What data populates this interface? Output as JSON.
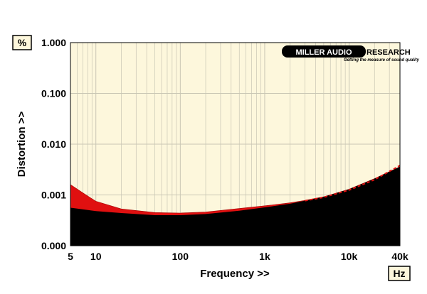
{
  "units": {
    "y": "%",
    "x": "Hz"
  },
  "logo": {
    "left": "MILLER AUDIO",
    "right": "RESEARCH",
    "tagline": "Getting the measure of sound quality"
  },
  "colors": {
    "background": "#fdf7dc",
    "grid": "#c9c6b4",
    "fill_black": "#000000",
    "fill_red": "#e01010",
    "dashed": "#e01010"
  },
  "chart_data": {
    "type": "area",
    "title": "",
    "xlabel": "Frequency >>",
    "ylabel": "Distortion >>",
    "x_scale": "log",
    "y_scale": "log",
    "xlim": [
      5,
      40000
    ],
    "ylim": [
      0.0001,
      1.0
    ],
    "y_zero_label": "0.000",
    "x_ticks": [
      5,
      10,
      100,
      1000,
      10000,
      40000
    ],
    "x_tick_labels": [
      "5",
      "10",
      "100",
      "1k",
      "10k",
      "40k"
    ],
    "y_ticks": [
      0.0001,
      0.001,
      0.01,
      0.1,
      1.0
    ],
    "y_tick_labels": [
      "0.000",
      "0.001",
      "0.010",
      "0.100",
      "1.000"
    ],
    "grid": true,
    "series": [
      {
        "style": "black-fill",
        "x": [
          5,
          7,
          10,
          20,
          50,
          100,
          200,
          500,
          1000,
          2000,
          3000,
          5000,
          10000,
          20000,
          40000
        ],
        "y": [
          0.00056,
          0.00052,
          0.00048,
          0.00044,
          0.0004,
          0.0004,
          0.00042,
          0.00049,
          0.00057,
          0.00067,
          0.00077,
          0.00092,
          0.0013,
          0.0021,
          0.0036
        ]
      },
      {
        "style": "red-fill",
        "x": [
          5,
          7,
          10,
          20,
          50,
          100,
          200,
          500,
          1000,
          2000,
          3000,
          5000,
          10000,
          20000,
          40000
        ],
        "y": [
          0.0016,
          0.0011,
          0.00075,
          0.00053,
          0.00045,
          0.00044,
          0.00046,
          0.00054,
          0.00061,
          0.0007,
          0.00078,
          0.00092,
          0.0013,
          0.0021,
          0.0036
        ]
      },
      {
        "style": "red-dashed",
        "x": [
          3000,
          5000,
          10000,
          20000,
          40000
        ],
        "y": [
          0.00077,
          0.0009,
          0.00125,
          0.002,
          0.0038
        ]
      }
    ]
  }
}
